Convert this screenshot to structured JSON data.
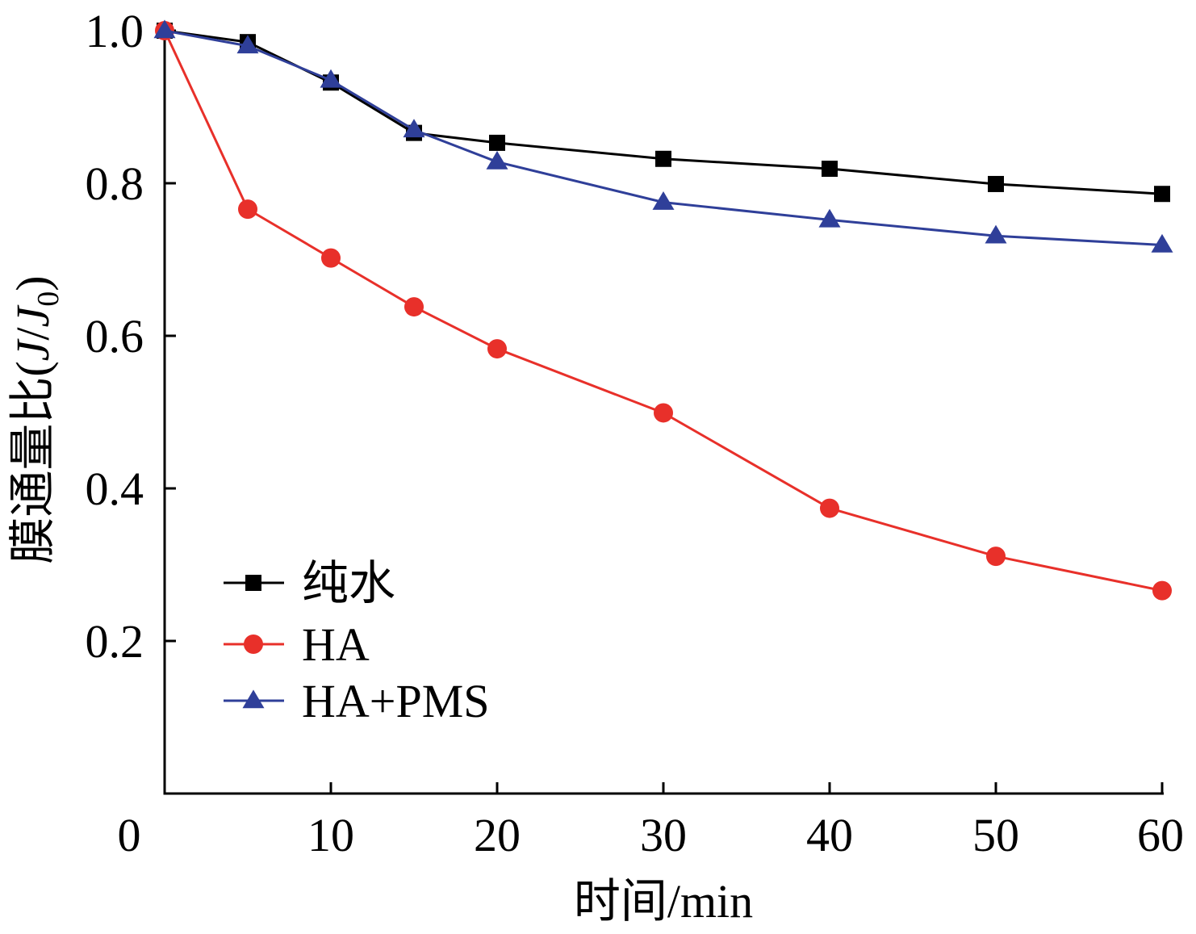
{
  "chart_data": {
    "type": "line",
    "xlabel": "时间/min",
    "ylabel_parts": {
      "prefix": "膜通量比(",
      "j": "J",
      "slash": "/",
      "j0": "J",
      "sub": "0",
      "suffix": ")"
    },
    "xlim": [
      0,
      60
    ],
    "ylim": [
      0,
      1.0
    ],
    "x_ticks": [
      0,
      10,
      20,
      30,
      40,
      50,
      60
    ],
    "x_tick_labels": [
      "0",
      "10",
      "20",
      "30",
      "40",
      "50",
      "60"
    ],
    "y_ticks": [
      0.2,
      0.4,
      0.6,
      0.8,
      1.0
    ],
    "y_tick_labels": [
      "0.2",
      "0.4",
      "0.6",
      "0.8",
      "1.0"
    ],
    "grid": false,
    "legend_position": "lower-left",
    "x": [
      0,
      5,
      10,
      15,
      20,
      30,
      40,
      50,
      60
    ],
    "series": [
      {
        "name": "纯水",
        "marker": "square",
        "color": "#000000",
        "values": [
          1.0,
          0.985,
          0.932,
          0.866,
          0.853,
          0.832,
          0.819,
          0.799,
          0.786
        ]
      },
      {
        "name": "HA",
        "marker": "circle",
        "color": "#e8302a",
        "values": [
          1.0,
          0.766,
          0.702,
          0.638,
          0.583,
          0.499,
          0.374,
          0.311,
          0.266
        ]
      },
      {
        "name": "HA+PMS",
        "marker": "triangle",
        "color": "#2f3f99",
        "values": [
          1.0,
          0.98,
          0.935,
          0.87,
          0.828,
          0.775,
          0.752,
          0.731,
          0.719
        ]
      }
    ]
  }
}
